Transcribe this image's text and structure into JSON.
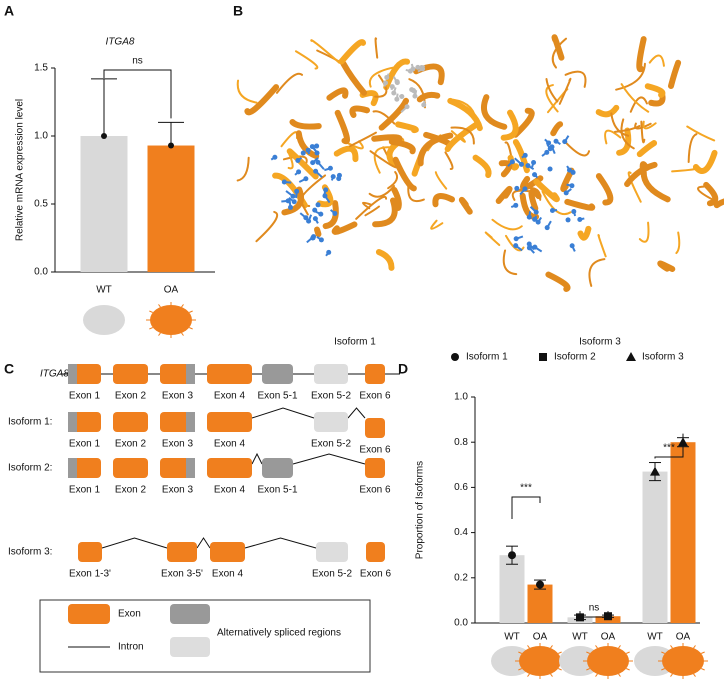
{
  "panel_labels": [
    "A",
    "B",
    "C",
    "D"
  ],
  "chart_data": [
    {
      "type": "bar",
      "title": "ITGA8",
      "y_label": "Relative mRNA expression level",
      "categories": [
        "WT",
        "OA"
      ],
      "values": [
        1.0,
        0.93
      ],
      "errors": [
        0.42,
        0.17
      ],
      "error_bars": "upper",
      "colors": [
        "#d9d9d9",
        "#f07f1e"
      ],
      "ylim": [
        0,
        1.5
      ],
      "yticks": [
        {
          "value": 0,
          "label": "0.0"
        },
        {
          "value": 0.5,
          "label": "0.5"
        },
        {
          "value": 1,
          "label": "1.0"
        },
        {
          "value": 1.5,
          "label": "1.5"
        }
      ],
      "annotations": [
        "ns"
      ]
    },
    {
      "type": "grouped_bar",
      "y_label": "Proportion of Isoforms",
      "categories": [
        "WT",
        "OA"
      ],
      "colors": [
        "#d9d9d9",
        "#f07f1e"
      ],
      "error_bars": "both",
      "series": [
        {
          "name": "Isoform 1",
          "marker": "circle",
          "color": "#111111",
          "values": [
            0.3,
            0.17
          ],
          "errors": [
            0.04,
            0.02
          ]
        },
        {
          "name": "Isoform 2",
          "marker": "square",
          "color": "#111111",
          "values": [
            0.025,
            0.03
          ],
          "errors": [
            0.01,
            0.005
          ]
        },
        {
          "name": "Isoform 3",
          "marker": "triangle",
          "color": "#111111",
          "values": [
            0.67,
            0.8
          ],
          "errors": [
            0.04,
            0.02
          ]
        }
      ],
      "ylim": [
        0,
        1.0
      ],
      "yticks": [
        {
          "value": 0,
          "label": "0.0"
        },
        {
          "value": 0.2,
          "label": "0.2"
        },
        {
          "value": 0.4,
          "label": "0.4"
        },
        {
          "value": 0.6,
          "label": "0.6"
        },
        {
          "value": 0.8,
          "label": "0.8"
        },
        {
          "value": 1,
          "label": "1.0"
        }
      ],
      "annotations": [
        "***",
        "ns",
        "***"
      ]
    }
  ],
  "panel_b": {
    "captions": [
      "Isoform 1",
      "Isoform 3"
    ]
  },
  "panel_c": {
    "rows": [
      {
        "name": "ITGA8:",
        "exons": [
          "Exon 1",
          "Exon 2",
          "Exon 3",
          "Exon 4",
          "Exon 5-1",
          "Exon 5-2",
          "Exon 6"
        ]
      },
      {
        "name": "Isoform 1:",
        "exons": [
          "Exon 1",
          "Exon 2",
          "Exon 3",
          "Exon 4",
          "Exon 5-2",
          "Exon 6"
        ]
      },
      {
        "name": "Isoform 2:",
        "exons": [
          "Exon 1",
          "Exon 2",
          "Exon 3",
          "Exon 4",
          "Exon 5-1",
          "Exon 6"
        ]
      },
      {
        "name": "Isoform 3:",
        "exons": [
          "Exon 1-3'",
          "Exon 3-5'",
          "Exon 4",
          "Exon 5-2",
          "Exon 6"
        ]
      }
    ],
    "legend": {
      "exon": "Exon",
      "intron": "Intron",
      "alternative": "Alternatively spliced regions"
    }
  }
}
